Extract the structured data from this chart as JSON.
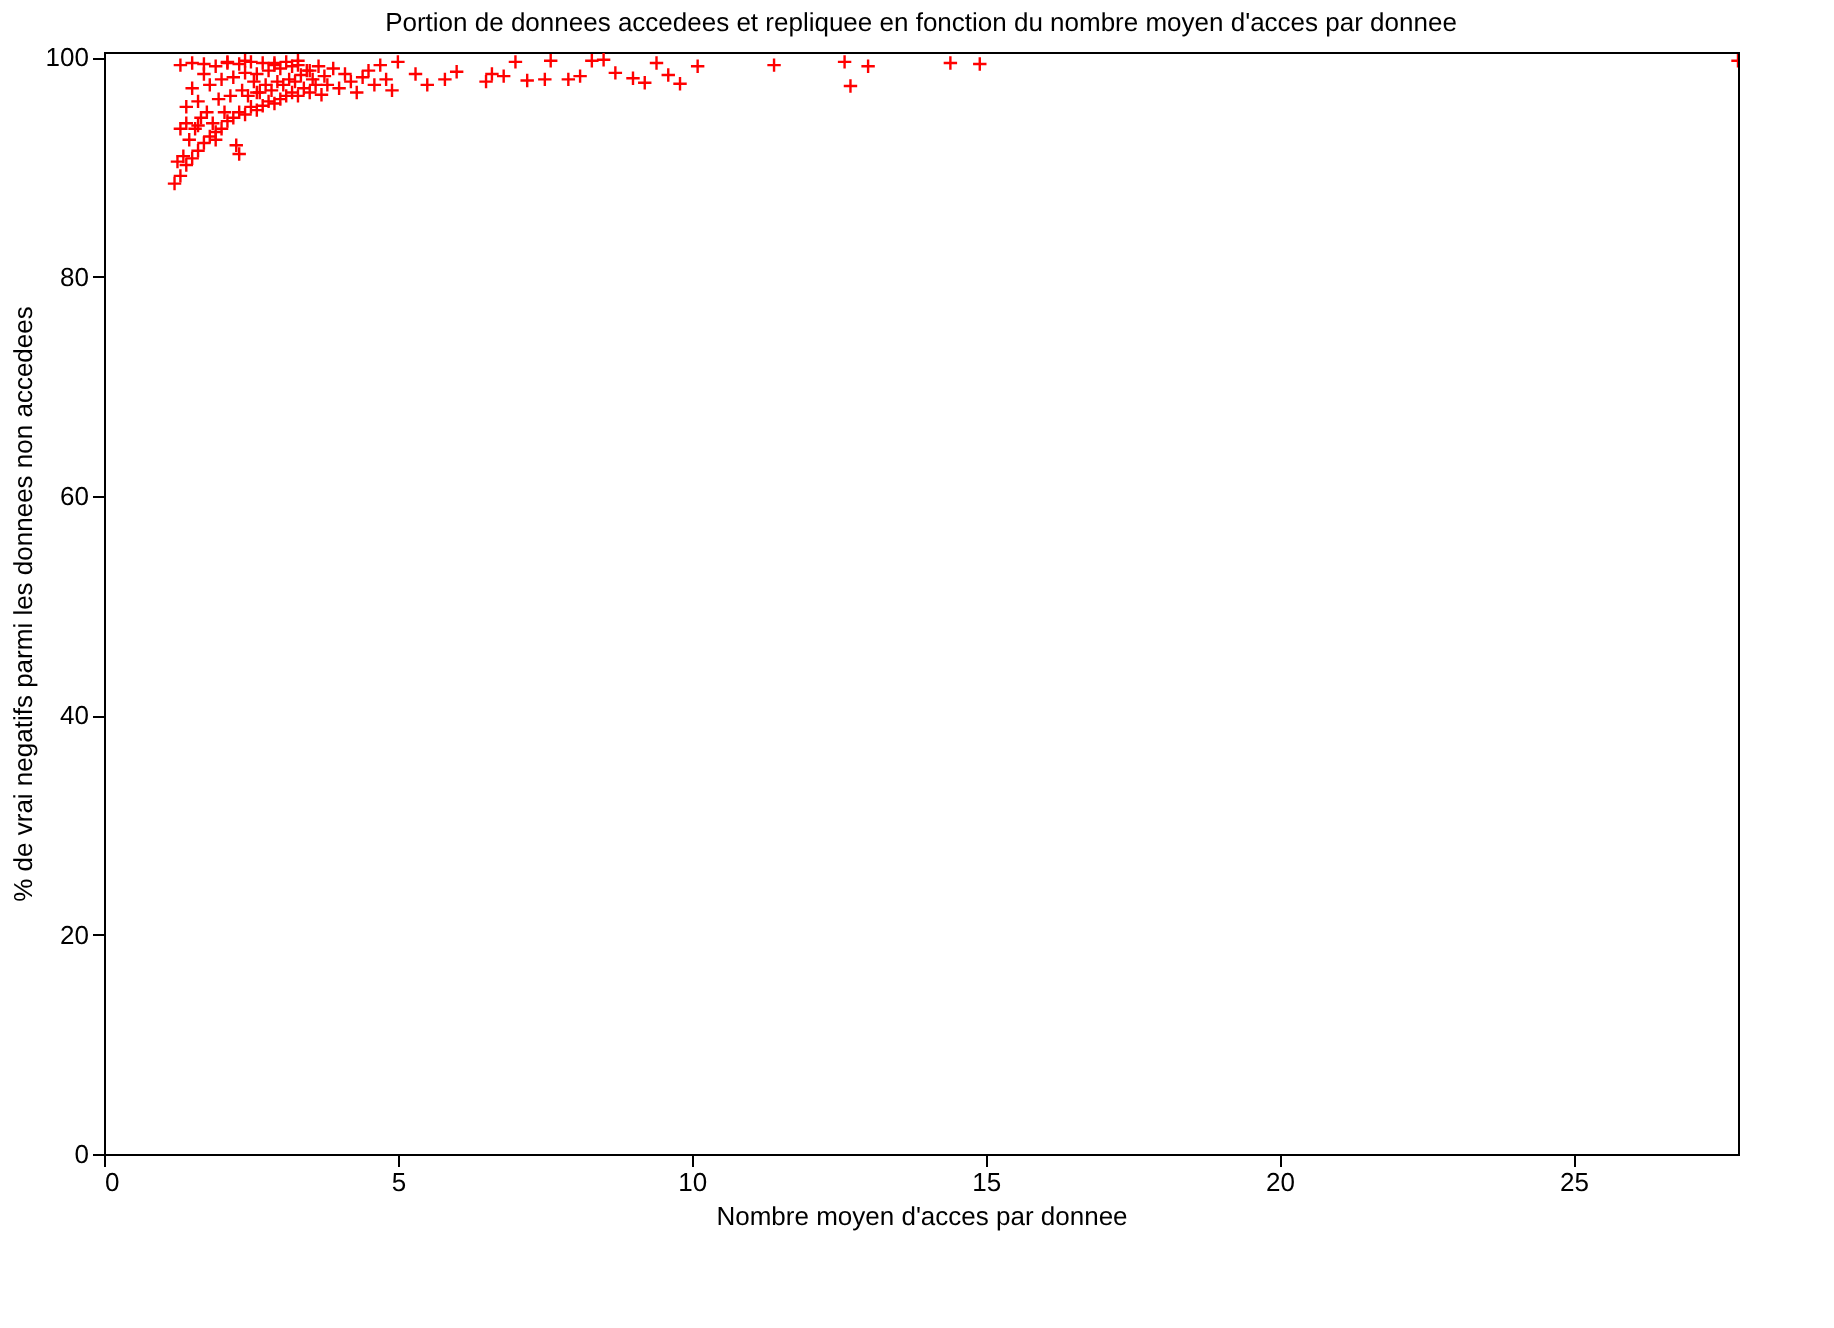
{
  "chart_data": {
    "type": "scatter",
    "title": "Portion de donnees accedees et repliquee en fonction du nombre moyen d'acces par donnee",
    "xlabel": "Nombre moyen d'acces par donnee",
    "ylabel": "% de vrai negatifs parmi les donnees non accedees",
    "xlim": [
      0,
      27.8
    ],
    "ylim": [
      0,
      100.5
    ],
    "xticks": [
      0,
      5,
      10,
      15,
      20,
      25
    ],
    "yticks": [
      0,
      20,
      40,
      60,
      80,
      100
    ],
    "grid": false,
    "marker": "cross",
    "series": [
      {
        "color": "#ff0000",
        "x": [
          1.2,
          1.25,
          1.3,
          1.3,
          1.35,
          1.4,
          1.4,
          1.45,
          1.5,
          1.5,
          1.55,
          1.6,
          1.6,
          1.65,
          1.7,
          1.7,
          1.75,
          1.8,
          1.8,
          1.85,
          1.9,
          1.9,
          1.95,
          2.0,
          2.0,
          2.05,
          2.1,
          2.1,
          2.15,
          2.2,
          2.2,
          2.25,
          2.3,
          2.3,
          2.35,
          2.4,
          2.4,
          2.45,
          2.5,
          2.5,
          2.55,
          2.6,
          2.6,
          2.65,
          2.7,
          2.7,
          2.75,
          2.8,
          2.8,
          2.85,
          2.9,
          2.9,
          2.95,
          3.0,
          3.0,
          3.05,
          3.1,
          3.1,
          3.15,
          3.2,
          3.2,
          3.25,
          3.3,
          3.3,
          3.35,
          3.4,
          3.45,
          3.5,
          3.55,
          3.6,
          3.65,
          3.7,
          3.75,
          3.8,
          3.9,
          4.0,
          4.1,
          4.2,
          4.3,
          4.4,
          4.5,
          4.6,
          4.7,
          4.8,
          4.9,
          5.0,
          1.3,
          1.5,
          1.7,
          2.1,
          2.4,
          2.9,
          3.3,
          1.4,
          1.9,
          2.6,
          1.6,
          2.3,
          3.5,
          5.3,
          5.5,
          5.8,
          6.0,
          6.5,
          6.6,
          6.8,
          7.0,
          7.2,
          7.5,
          7.6,
          7.9,
          8.1,
          8.3,
          8.5,
          8.7,
          9.0,
          9.2,
          9.4,
          9.6,
          9.8,
          10.1,
          11.4,
          12.6,
          12.7,
          13.0,
          14.4,
          14.9,
          27.8
        ],
        "values": [
          88.5,
          90.5,
          89.2,
          93.5,
          91,
          90.2,
          95.5,
          92.5,
          90.8,
          97.2,
          93.5,
          91.5,
          96,
          94.5,
          92.2,
          98.5,
          95,
          92.8,
          97.5,
          94,
          93.2,
          99.2,
          96.2,
          93.5,
          98,
          95,
          94.2,
          99.5,
          96.5,
          94.5,
          98.2,
          92,
          95,
          99.4,
          97,
          94.8,
          98.6,
          96.5,
          95.5,
          99.6,
          97.8,
          95.2,
          98.5,
          96.8,
          95.6,
          99.5,
          97.5,
          96,
          98.8,
          97,
          95.8,
          99.3,
          97.8,
          96.2,
          99,
          97.5,
          96.5,
          99.6,
          98,
          96.8,
          99.2,
          97.8,
          96.5,
          99.7,
          98.4,
          97.2,
          98.8,
          96.8,
          98,
          97.5,
          99.2,
          96.6,
          98.3,
          97.5,
          99,
          97.2,
          98.5,
          97.8,
          96.8,
          98.2,
          98.8,
          97.5,
          99.3,
          98,
          97,
          99.6,
          99.3,
          99.5,
          99.4,
          99.6,
          99.7,
          99.5,
          99.3,
          94,
          92.5,
          96.8,
          93.8,
          91.2,
          98.8,
          98.5,
          97.5,
          98,
          98.7,
          97.8,
          98.5,
          98.3,
          99.6,
          97.9,
          98,
          99.7,
          98,
          98.3,
          99.7,
          99.8,
          98.6,
          98.1,
          97.7,
          99.5,
          98.4,
          97.6,
          99.2,
          99.3,
          99.6,
          97.4,
          99.2,
          99.5,
          99.4,
          99.7
        ]
      }
    ]
  }
}
